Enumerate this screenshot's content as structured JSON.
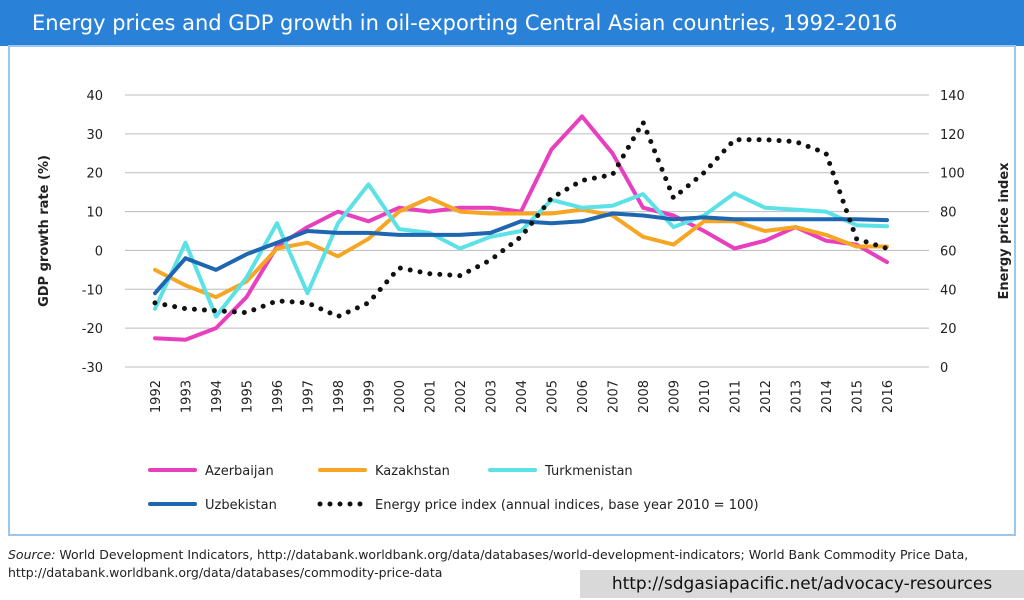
{
  "chart_data": {
    "type": "line",
    "title": "Energy prices and GDP growth in oil-exporting Central Asian countries, 1992-2016",
    "y_label": "GDP growth rate (%)",
    "y2_label": "Energy price index",
    "categories": [
      "1992",
      "1993",
      "1994",
      "1995",
      "1996",
      "1997",
      "1998",
      "1999",
      "2000",
      "2001",
      "2002",
      "2003",
      "2004",
      "2005",
      "2006",
      "2007",
      "2008",
      "2009",
      "2010",
      "2011",
      "2012",
      "2013",
      "2014",
      "2015",
      "2016"
    ],
    "ylim": [
      -30,
      40
    ],
    "yticks": [
      -30,
      -20,
      -10,
      0,
      10,
      20,
      30,
      40
    ],
    "y2lim": [
      0,
      140
    ],
    "y2ticks": [
      0,
      20,
      40,
      60,
      80,
      100,
      120,
      140
    ],
    "grid": true,
    "series": [
      {
        "name": "Azerbaijan",
        "color": "#e83fbe",
        "values": [
          -22.6,
          -23,
          -20,
          -12,
          1,
          6,
          10,
          7.5,
          11,
          10,
          11,
          11,
          10,
          26,
          34.5,
          25,
          11,
          9,
          5,
          0.5,
          2.5,
          6,
          2.5,
          1.5,
          -3
        ]
      },
      {
        "name": "Kazakhstan",
        "color": "#f6a623",
        "values": [
          -5,
          -9,
          -12,
          -8,
          0.5,
          2,
          -1.5,
          3,
          10,
          13.5,
          10,
          9.5,
          9.5,
          9.5,
          10.5,
          9,
          3.5,
          1.5,
          7.5,
          7.5,
          5,
          6,
          4,
          1,
          1
        ]
      },
      {
        "name": "Turkmenistan",
        "color": "#5ce1e6",
        "values": [
          -15,
          2,
          -17,
          -7,
          7,
          -11,
          7,
          17,
          5.5,
          4.5,
          0.5,
          3.5,
          5,
          13,
          11,
          11.5,
          14.5,
          6,
          9,
          14.7,
          11,
          10.5,
          10,
          6.5,
          6.2
        ]
      },
      {
        "name": "Uzbekistan",
        "color": "#1f66b1",
        "values": [
          -11,
          -2,
          -5,
          -1,
          2,
          5,
          4.5,
          4.5,
          4,
          4,
          4,
          4.5,
          7.5,
          7,
          7.5,
          9.5,
          9,
          8,
          8.5,
          8,
          8,
          8,
          8,
          8,
          7.8
        ]
      },
      {
        "name": "Energy price index (annual indices, base year 2010 = 100)",
        "color": "#111111",
        "dash": "dotted",
        "axis": "y2",
        "values": [
          33,
          30,
          29,
          28,
          34,
          33,
          26,
          33,
          51,
          48,
          47,
          55,
          67,
          87,
          96,
          99,
          126,
          87,
          100,
          117,
          117,
          116,
          110,
          66,
          61
        ]
      }
    ],
    "source_label": "Source:",
    "source_text": "World Development Indicators, http://databank.worldbank.org/data/databases/world-development-indicators; World Bank Commodity Price Data, http://databank.worldbank.org/data/databases/commodity-price-data",
    "url": "http://sdgasiapacific.net/advocacy-resources"
  }
}
